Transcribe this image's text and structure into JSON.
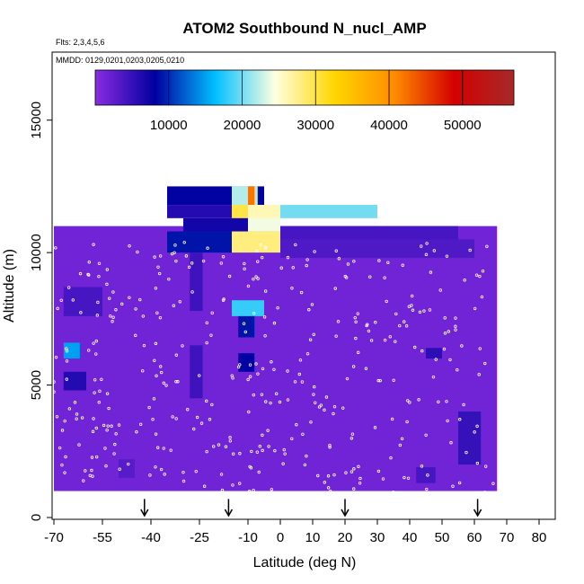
{
  "chart_data": {
    "type": "heatmap",
    "title": "ATOM2 Southbound N_nucl_AMP",
    "flights_label": "Flts: 2,3,4,5,6",
    "dates_label": "MMDD: 0129,0201,0203,0205,0210",
    "xlabel": "Latitude (deg N)",
    "ylabel": "Altitude (m)",
    "xlim": [
      -70,
      85
    ],
    "ylim": [
      0,
      17500
    ],
    "x_ticks": [
      -70,
      -55,
      -40,
      -25,
      -10,
      0,
      10,
      20,
      30,
      40,
      50,
      60,
      70,
      80
    ],
    "x_tick_labels": [
      "-70",
      "-55",
      "-40",
      "-25",
      "-10",
      "0",
      "10",
      "20",
      "30",
      "40",
      "50",
      "60",
      "70",
      "80"
    ],
    "y_ticks": [
      0,
      5000,
      10000,
      15000
    ],
    "y_tick_labels": [
      "0",
      "5000",
      "10000",
      "15000"
    ],
    "colorbar": {
      "range": [
        0,
        57000
      ],
      "ticks": [
        10000,
        20000,
        30000,
        40000,
        50000
      ],
      "tick_labels": [
        "10000",
        "20000",
        "30000",
        "40000",
        "50000"
      ],
      "colors": [
        "#8a2be2",
        "#0000a0",
        "#00bfff",
        "#ffffe0",
        "#ffd700",
        "#ff8c00",
        "#d40000",
        "#a52a2a"
      ]
    },
    "grid_extent": {
      "lat": [
        -70,
        67
      ],
      "alt": [
        1000,
        11000
      ]
    },
    "background_value": 1500,
    "cells": [
      {
        "lat": [
          -35,
          -5
        ],
        "alt": [
          11800,
          12500
        ],
        "value": 8000
      },
      {
        "lat": [
          -15,
          -7
        ],
        "alt": [
          11800,
          12500
        ],
        "value": 22000
      },
      {
        "lat": [
          -10,
          -8
        ],
        "alt": [
          11800,
          12500
        ],
        "value": 42000
      },
      {
        "lat": [
          -35,
          -15
        ],
        "alt": [
          11300,
          11800
        ],
        "value": 6000
      },
      {
        "lat": [
          -15,
          -10
        ],
        "alt": [
          11300,
          11800
        ],
        "value": 30000
      },
      {
        "lat": [
          -10,
          0
        ],
        "alt": [
          11300,
          11800
        ],
        "value": 26000
      },
      {
        "lat": [
          0,
          30
        ],
        "alt": [
          11300,
          11800
        ],
        "value": 20000
      },
      {
        "lat": [
          -30,
          -10
        ],
        "alt": [
          10800,
          11300
        ],
        "value": 7000
      },
      {
        "lat": [
          -10,
          0
        ],
        "alt": [
          10800,
          11300
        ],
        "value": 24000
      },
      {
        "lat": [
          -15,
          0
        ],
        "alt": [
          10000,
          10800
        ],
        "value": 28000
      },
      {
        "lat": [
          -35,
          -15
        ],
        "alt": [
          10000,
          10800
        ],
        "value": 9000
      },
      {
        "lat": [
          0,
          55
        ],
        "alt": [
          10000,
          11000
        ],
        "value": 4000
      },
      {
        "lat": [
          -15,
          -5
        ],
        "alt": [
          7600,
          8200
        ],
        "value": 18000
      },
      {
        "lat": [
          -13,
          -8
        ],
        "alt": [
          6800,
          7600
        ],
        "value": 9000
      },
      {
        "lat": [
          -13,
          -8
        ],
        "alt": [
          5500,
          6200
        ],
        "value": 8000
      },
      {
        "lat": [
          -67,
          -62
        ],
        "alt": [
          6000,
          6600
        ],
        "value": 15000
      },
      {
        "lat": [
          -67,
          -60
        ],
        "alt": [
          4800,
          5500
        ],
        "value": 6000
      },
      {
        "lat": [
          -67,
          -55
        ],
        "alt": [
          7600,
          8700
        ],
        "value": 4000
      },
      {
        "lat": [
          -28,
          -24
        ],
        "alt": [
          7800,
          10000
        ],
        "value": 4500
      },
      {
        "lat": [
          -28,
          -24
        ],
        "alt": [
          4500,
          6500
        ],
        "value": 4500
      },
      {
        "lat": [
          45,
          50
        ],
        "alt": [
          6000,
          6400
        ],
        "value": 5500
      },
      {
        "lat": [
          55,
          62
        ],
        "alt": [
          2000,
          4000
        ],
        "value": 5000
      },
      {
        "lat": [
          0,
          60
        ],
        "alt": [
          9800,
          10500
        ],
        "value": 3500
      },
      {
        "lat": [
          42,
          48
        ],
        "alt": [
          1300,
          1900
        ],
        "value": 4000
      },
      {
        "lat": [
          -50,
          -45
        ],
        "alt": [
          1500,
          2200
        ],
        "value": 3000
      }
    ],
    "arrows_lat": [
      -42,
      -16,
      20,
      61
    ]
  }
}
